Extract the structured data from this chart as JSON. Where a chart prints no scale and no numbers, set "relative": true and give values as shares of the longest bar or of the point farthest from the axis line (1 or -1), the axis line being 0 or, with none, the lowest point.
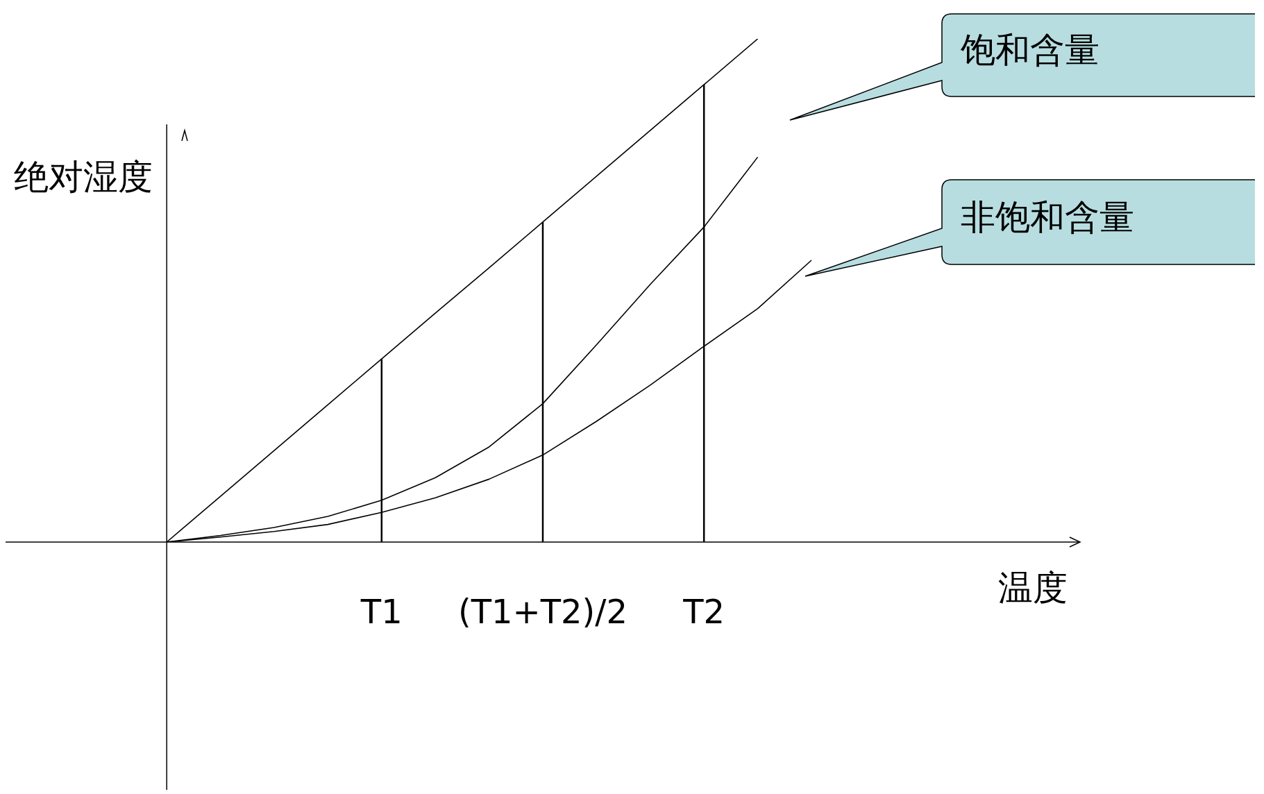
{
  "chart_data": {
    "type": "line",
    "relative": true,
    "xlabel": "温度",
    "ylabel": "绝对湿度",
    "legend": false,
    "grid": false,
    "marker": "none",
    "tick_labels": "x",
    "categories": [
      null,
      null,
      null,
      null,
      null,
      null,
      null,
      "T1",
      null,
      null,
      "(T1+T2)/2",
      null,
      null,
      "T2",
      null,
      null,
      null,
      null,
      null,
      null,
      null
    ],
    "series": [
      {
        "color": "#000000",
        "values": [
          null,
          null,
          null,
          0,
          0.091,
          0.182,
          0.273,
          0.364,
          0.455,
          0.545,
          0.636,
          0.727,
          0.818,
          0.909,
          1,
          null,
          null,
          null,
          null,
          null,
          null
        ]
      },
      {
        "name": "饱和含量",
        "color": "#000000",
        "values": [
          null,
          null,
          null,
          0,
          0.013,
          0.029,
          0.051,
          0.083,
          0.128,
          0.189,
          0.275,
          0.392,
          0.512,
          0.626,
          0.765,
          null,
          null,
          null,
          null,
          null,
          null
        ]
      },
      {
        "name": "非饱和含量",
        "color": "#000000",
        "values": [
          null,
          null,
          null,
          0,
          0.01,
          0.021,
          0.035,
          0.059,
          0.088,
          0.125,
          0.173,
          0.24,
          0.312,
          0.389,
          0.464,
          0.56,
          null,
          null,
          null,
          null,
          null
        ]
      }
    ],
    "ref_lines": [
      {
        "axis": "x",
        "value": "T1",
        "color": "#000000"
      },
      {
        "axis": "x",
        "value": "(T1+T2)/2",
        "color": "#000000"
      },
      {
        "axis": "x",
        "value": "T2",
        "color": "#000000"
      }
    ]
  }
}
